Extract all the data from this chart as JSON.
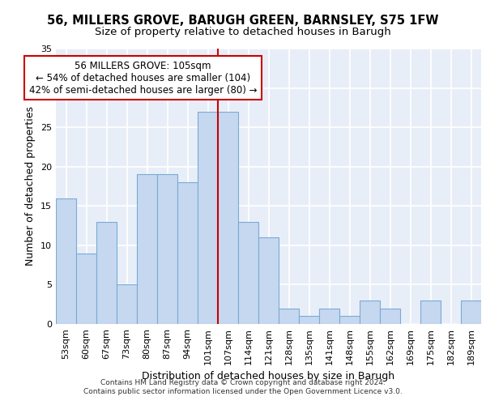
{
  "title1": "56, MILLERS GROVE, BARUGH GREEN, BARNSLEY, S75 1FW",
  "title2": "Size of property relative to detached houses in Barugh",
  "xlabel": "Distribution of detached houses by size in Barugh",
  "ylabel": "Number of detached properties",
  "categories": [
    "53sqm",
    "60sqm",
    "67sqm",
    "73sqm",
    "80sqm",
    "87sqm",
    "94sqm",
    "101sqm",
    "107sqm",
    "114sqm",
    "121sqm",
    "128sqm",
    "135sqm",
    "141sqm",
    "148sqm",
    "155sqm",
    "162sqm",
    "169sqm",
    "175sqm",
    "182sqm",
    "189sqm"
  ],
  "values": [
    16,
    9,
    13,
    5,
    19,
    19,
    18,
    27,
    27,
    13,
    11,
    2,
    1,
    2,
    1,
    3,
    2,
    0,
    3,
    0,
    3
  ],
  "bar_color": "#c5d8f0",
  "bar_edge_color": "#7aaad4",
  "background_color": "#e8eef8",
  "grid_color": "#ffffff",
  "annotation_text": "56 MILLERS GROVE: 105sqm\n← 54% of detached houses are smaller (104)\n42% of semi-detached houses are larger (80) →",
  "annotation_box_color": "#ffffff",
  "annotation_box_edge_color": "#cc0000",
  "redline_x": 7.5,
  "ylim": [
    0,
    35
  ],
  "yticks": [
    0,
    5,
    10,
    15,
    20,
    25,
    30,
    35
  ],
  "footer": "Contains HM Land Registry data © Crown copyright and database right 2024.\nContains public sector information licensed under the Open Government Licence v3.0.",
  "title_fontsize": 10.5,
  "subtitle_fontsize": 9.5,
  "axis_label_fontsize": 9,
  "tick_fontsize": 8,
  "annotation_fontsize": 8.5
}
